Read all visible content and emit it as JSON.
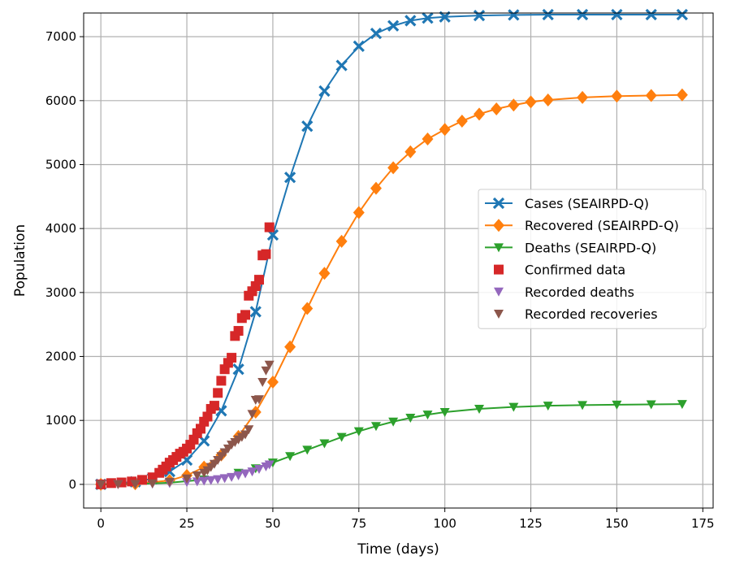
{
  "chart_data": {
    "type": "line",
    "title": "",
    "xlabel": "Time (days)",
    "ylabel": "Population",
    "xlim": [
      -5,
      178
    ],
    "ylim": [
      -370,
      7370
    ],
    "xticks": [
      0,
      25,
      50,
      75,
      100,
      125,
      150,
      175
    ],
    "yticks": [
      0,
      1000,
      2000,
      3000,
      4000,
      5000,
      6000,
      7000
    ],
    "grid": true,
    "legend_position": "center-right",
    "series": [
      {
        "name": "Cases (SEAIRPD-Q)",
        "kind": "line-marker",
        "marker": "x",
        "color": "#1f77b4",
        "x": [
          0,
          10,
          15,
          20,
          25,
          30,
          35,
          40,
          45,
          50,
          55,
          60,
          65,
          70,
          75,
          80,
          85,
          90,
          95,
          100,
          110,
          120,
          130,
          140,
          150,
          160,
          169
        ],
        "y": [
          0,
          40,
          90,
          200,
          380,
          680,
          1150,
          1800,
          2700,
          3900,
          4800,
          5600,
          6150,
          6550,
          6850,
          7050,
          7170,
          7250,
          7290,
          7310,
          7330,
          7340,
          7345,
          7345,
          7345,
          7345,
          7345
        ]
      },
      {
        "name": "Recovered (SEAIRPD-Q)",
        "kind": "line-marker",
        "marker": "diamond",
        "color": "#ff7f0e",
        "x": [
          0,
          10,
          20,
          25,
          30,
          35,
          40,
          45,
          50,
          55,
          60,
          65,
          70,
          75,
          80,
          85,
          90,
          95,
          100,
          105,
          110,
          115,
          120,
          125,
          130,
          140,
          150,
          160,
          169
        ],
        "y": [
          0,
          10,
          60,
          140,
          270,
          460,
          750,
          1130,
          1600,
          2150,
          2750,
          3300,
          3800,
          4250,
          4630,
          4950,
          5200,
          5400,
          5550,
          5680,
          5790,
          5870,
          5930,
          5980,
          6010,
          6050,
          6070,
          6080,
          6090
        ]
      },
      {
        "name": "Deaths (SEAIRPD-Q)",
        "kind": "line-marker",
        "marker": "triangle-down",
        "color": "#2ca02c",
        "x": [
          0,
          10,
          20,
          30,
          40,
          45,
          50,
          55,
          60,
          65,
          70,
          75,
          80,
          85,
          90,
          95,
          100,
          110,
          120,
          130,
          140,
          150,
          160,
          169
        ],
        "y": [
          0,
          5,
          25,
          75,
          180,
          250,
          340,
          440,
          540,
          640,
          740,
          830,
          910,
          980,
          1040,
          1090,
          1130,
          1180,
          1210,
          1230,
          1240,
          1245,
          1250,
          1255
        ]
      },
      {
        "name": "Confirmed data",
        "kind": "scatter",
        "marker": "square",
        "color": "#d62728",
        "x": [
          0,
          3,
          6,
          9,
          12,
          15,
          17,
          18,
          19,
          20,
          21,
          22,
          23,
          24,
          25,
          26,
          27,
          28,
          29,
          30,
          31,
          32,
          33,
          34,
          35,
          36,
          37,
          38,
          39,
          40,
          41,
          42,
          43,
          44,
          45,
          46,
          47,
          48,
          49
        ],
        "y": [
          0,
          20,
          30,
          45,
          70,
          110,
          180,
          230,
          280,
          340,
          380,
          430,
          480,
          510,
          560,
          620,
          700,
          800,
          870,
          980,
          1060,
          1180,
          1230,
          1430,
          1620,
          1800,
          1900,
          1980,
          2320,
          2400,
          2600,
          2650,
          2950,
          3020,
          3100,
          3200,
          3580,
          3600,
          4020
        ]
      },
      {
        "name": "Recorded deaths",
        "kind": "scatter",
        "marker": "triangle-down",
        "color": "#9467bd",
        "x": [
          0,
          5,
          10,
          15,
          20,
          25,
          28,
          30,
          32,
          34,
          36,
          38,
          40,
          42,
          44,
          46,
          48,
          49
        ],
        "y": [
          0,
          2,
          5,
          10,
          20,
          35,
          45,
          55,
          65,
          80,
          95,
          115,
          140,
          170,
          200,
          240,
          280,
          310
        ]
      },
      {
        "name": "Recorded recoveries",
        "kind": "scatter",
        "marker": "triangle-down",
        "color": "#8c564b",
        "x": [
          0,
          5,
          10,
          15,
          20,
          25,
          28,
          30,
          31,
          32,
          33,
          34,
          35,
          36,
          37,
          38,
          39,
          40,
          41,
          42,
          43,
          44,
          45,
          46,
          47,
          48,
          49
        ],
        "y": [
          0,
          2,
          5,
          15,
          40,
          90,
          140,
          180,
          220,
          270,
          320,
          380,
          440,
          500,
          560,
          620,
          660,
          700,
          740,
          780,
          860,
          1100,
          1320,
          1330,
          1600,
          1780,
          1870
        ]
      }
    ]
  }
}
